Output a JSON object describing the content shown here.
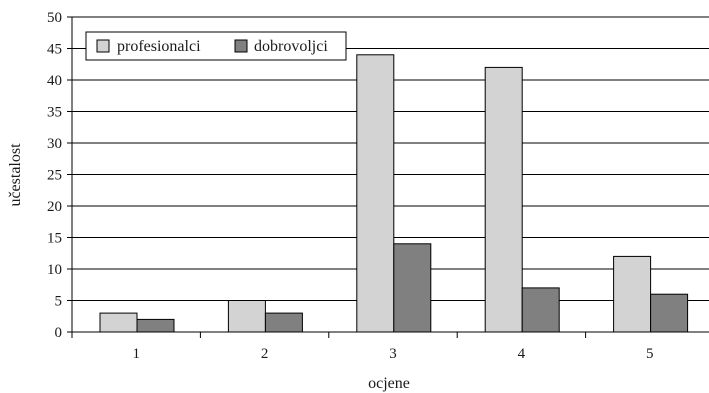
{
  "chart_data": {
    "type": "bar",
    "title": "",
    "xlabel": "ocjene",
    "ylabel": "učestalost",
    "categories": [
      "1",
      "2",
      "3",
      "4",
      "5"
    ],
    "series": [
      {
        "name": "profesionalci",
        "values": [
          3,
          5,
          44,
          42,
          12
        ],
        "color": "#d3d3d3"
      },
      {
        "name": "dobrovoljci",
        "values": [
          2,
          3,
          14,
          7,
          6
        ],
        "color": "#808080"
      }
    ],
    "ylim": [
      0,
      50
    ],
    "yticks": [
      "0",
      "5",
      "10",
      "15",
      "20",
      "25",
      "30",
      "35",
      "40",
      "45",
      "50"
    ],
    "grid": true,
    "legend": "top-left"
  }
}
